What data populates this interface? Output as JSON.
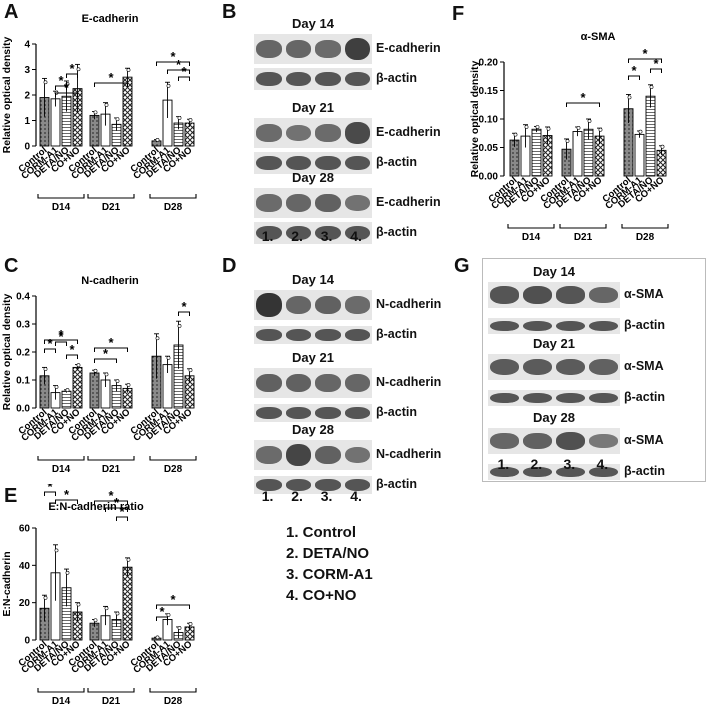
{
  "panel_labels": {
    "a": "A",
    "b": "B",
    "c": "C",
    "d": "D",
    "e": "E",
    "f": "F",
    "g": "G"
  },
  "colors": {
    "control": "#777777",
    "corm": "#ffffff",
    "deta": "#ffffff",
    "cono": "#ffffff",
    "band": "#2a2a2a"
  },
  "lanes": [
    "1.",
    "2.",
    "3.",
    "4."
  ],
  "legend": [
    "1. Control",
    "2. DETA/NO",
    "3. CORM-A1",
    "4. CO+NO"
  ],
  "chart_data": [
    {
      "panel": "A",
      "type": "bar",
      "title": "E-cadherin",
      "ylabel": "Relative optical density",
      "ylim": [
        0,
        4
      ],
      "yticks": [
        "0",
        "1",
        "2",
        "3",
        "4"
      ],
      "categories": [
        "Control",
        "CORM-A1",
        "DETA/NO",
        "CO+NO"
      ],
      "groups": [
        "D14",
        "D21",
        "D28"
      ],
      "values": [
        [
          1.9,
          1.85,
          1.95,
          2.25
        ],
        [
          1.2,
          1.25,
          0.85,
          2.7
        ],
        [
          0.2,
          1.8,
          0.9,
          0.9
        ]
      ],
      "errors": [
        [
          0.75,
          0.3,
          0.6,
          0.95
        ],
        [
          0.15,
          0.45,
          0.25,
          0.35
        ],
        [
          0.05,
          0.7,
          0.25,
          0.15
        ]
      ],
      "significance": [
        "*",
        "*",
        "*",
        "*",
        "*",
        "*",
        "*"
      ]
    },
    {
      "panel": "C",
      "type": "bar",
      "title": "N-cadherin",
      "ylabel": "Relative optical density",
      "ylim": [
        0,
        0.4
      ],
      "yticks": [
        "0.0",
        "0.1",
        "0.2",
        "0.3",
        "0.4"
      ],
      "categories": [
        "Control",
        "CORM-A1",
        "DETA/NO",
        "CO+NO"
      ],
      "groups": [
        "D14",
        "D21",
        "D28"
      ],
      "values": [
        [
          0.115,
          0.055,
          0.06,
          0.145
        ],
        [
          0.125,
          0.1,
          0.08,
          0.07
        ],
        [
          0.185,
          0.155,
          0.225,
          0.115
        ]
      ],
      "errors": [
        [
          0.03,
          0.025,
          0.005,
          0.01
        ],
        [
          0.01,
          0.025,
          0.02,
          0.015
        ],
        [
          0.08,
          0.03,
          0.085,
          0.025
        ]
      ],
      "significance": [
        "*",
        "*",
        "*",
        "*",
        "*",
        "*",
        "*"
      ]
    },
    {
      "panel": "E",
      "type": "bar",
      "title": "E:N-cadherin ratio",
      "ylabel": "E:N-cadherin",
      "ylim": [
        0,
        60
      ],
      "yticks": [
        "0",
        "20",
        "40",
        "60"
      ],
      "categories": [
        "Control",
        "CORM-A1",
        "DETA/NO",
        "CO+NO"
      ],
      "groups": [
        "D14",
        "D21",
        "D28"
      ],
      "values": [
        [
          17,
          36,
          28,
          15
        ],
        [
          9,
          13,
          11,
          39
        ],
        [
          1,
          11,
          4,
          7
        ]
      ],
      "errors": [
        [
          7,
          15,
          10,
          5
        ],
        [
          2,
          5,
          4,
          5
        ],
        [
          0.5,
          3,
          3,
          2
        ]
      ],
      "significance": [
        "*",
        "*",
        "*",
        "*",
        "*",
        "*",
        "*"
      ]
    },
    {
      "panel": "F",
      "type": "bar",
      "title": "α-SMA",
      "ylabel": "Relative optical density",
      "ylim": [
        0,
        0.2
      ],
      "yticks": [
        "0.00",
        "0.05",
        "0.10",
        "0.15",
        "0.20"
      ],
      "categories": [
        "Control",
        "CORM-A1",
        "DETA/NO",
        "CO+NO"
      ],
      "groups": [
        "D14",
        "D21",
        "D28"
      ],
      "values": [
        [
          0.063,
          0.07,
          0.082,
          0.071
        ],
        [
          0.047,
          0.078,
          0.082,
          0.07
        ],
        [
          0.118,
          0.073,
          0.14,
          0.045
        ]
      ],
      "errors": [
        [
          0.012,
          0.02,
          0.005,
          0.015
        ],
        [
          0.018,
          0.008,
          0.018,
          0.014
        ],
        [
          0.025,
          0.006,
          0.02,
          0.008
        ]
      ],
      "significance": [
        "*",
        "*",
        "*",
        "*"
      ]
    }
  ],
  "blots": {
    "b": {
      "days": [
        "Day 14",
        "Day 21",
        "Day 28"
      ],
      "top": "E-cadherin",
      "bottom": "β-actin"
    },
    "d": {
      "days": [
        "Day 14",
        "Day 21",
        "Day 28"
      ],
      "top": "N-cadherin",
      "bottom": "β-actin"
    },
    "g": {
      "days": [
        "Day 14",
        "Day 21",
        "Day 28"
      ],
      "top": "α-SMA",
      "bottom": "β-actin"
    }
  },
  "band_intensity": {
    "b": [
      [
        0.55,
        0.55,
        0.5,
        0.9
      ],
      [
        0.5,
        0.45,
        0.5,
        0.8
      ],
      [
        0.5,
        0.55,
        0.6,
        0.45
      ]
    ],
    "d": [
      [
        1.0,
        0.55,
        0.6,
        0.5
      ],
      [
        0.6,
        0.6,
        0.55,
        0.55
      ],
      [
        0.5,
        0.85,
        0.6,
        0.45
      ]
    ],
    "g": [
      [
        0.7,
        0.75,
        0.7,
        0.55
      ],
      [
        0.65,
        0.65,
        0.65,
        0.6
      ],
      [
        0.55,
        0.6,
        0.75,
        0.4
      ]
    ]
  }
}
